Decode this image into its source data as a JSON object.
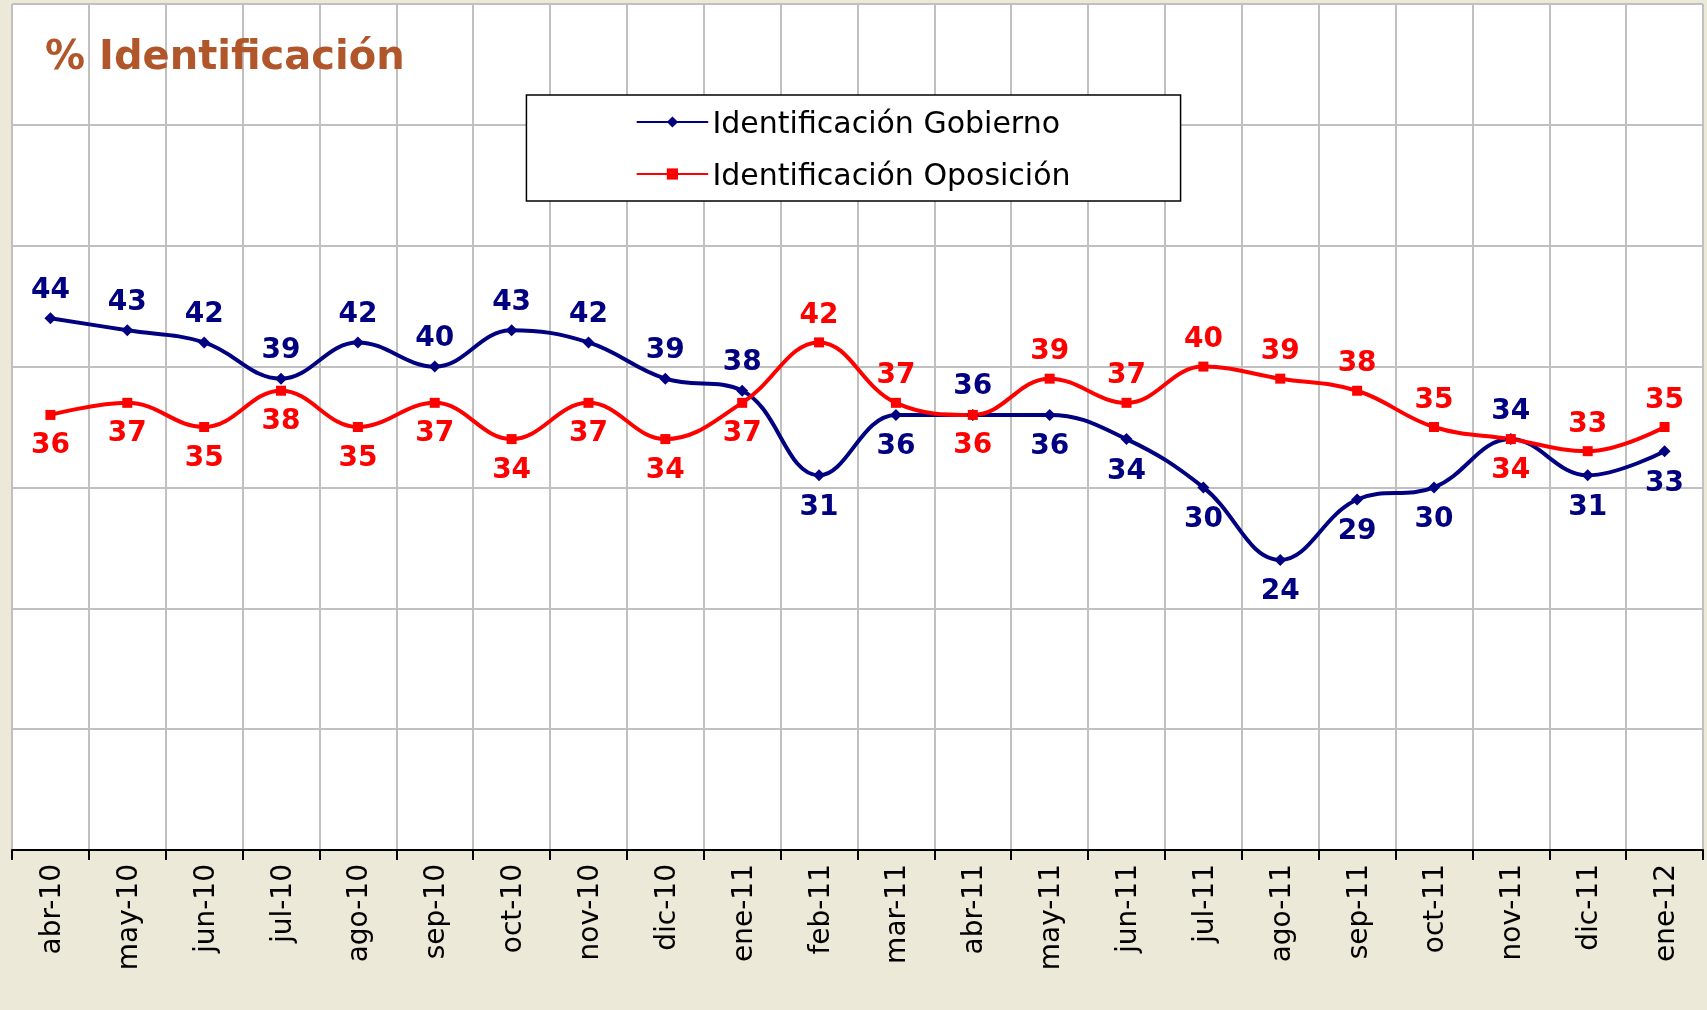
{
  "chart_data": {
    "type": "line",
    "title": "% Identificación",
    "categories": [
      "abr-10",
      "may-10",
      "jun-10",
      "jul-10",
      "ago-10",
      "sep-10",
      "oct-10",
      "nov-10",
      "dic-10",
      "ene-11",
      "feb-11",
      "mar-11",
      "abr-11",
      "may-11",
      "jun-11",
      "jul-11",
      "ago-11",
      "sep-11",
      "oct-11",
      "nov-11",
      "dic-11",
      "ene-12"
    ],
    "series": [
      {
        "name": "Identificación Gobierno",
        "color": "#000080",
        "marker": "diamond",
        "values": [
          44,
          43,
          42,
          39,
          42,
          40,
          43,
          42,
          39,
          38,
          31,
          36,
          36,
          36,
          34,
          30,
          24,
          29,
          30,
          34,
          31,
          33
        ]
      },
      {
        "name": "Identificación Oposición",
        "color": "#ff0000",
        "marker": "square",
        "values": [
          36,
          37,
          35,
          38,
          35,
          37,
          34,
          37,
          34,
          37,
          42,
          37,
          36,
          39,
          37,
          40,
          39,
          38,
          35,
          34,
          33,
          35
        ]
      }
    ],
    "ylim": [
      0,
      70
    ],
    "yticks": [
      {
        "value": 0,
        "label": null
      },
      {
        "value": 10,
        "label": null
      },
      {
        "value": 20,
        "label": null
      },
      {
        "value": 30,
        "label": null
      },
      {
        "value": 40,
        "label": null
      },
      {
        "value": 50,
        "label": null
      },
      {
        "value": 60,
        "label": null
      },
      {
        "value": 70,
        "label": null
      }
    ],
    "tick_labels": "x",
    "grid": true,
    "legend": "top",
    "data_labels": true,
    "line_style": "solid"
  }
}
